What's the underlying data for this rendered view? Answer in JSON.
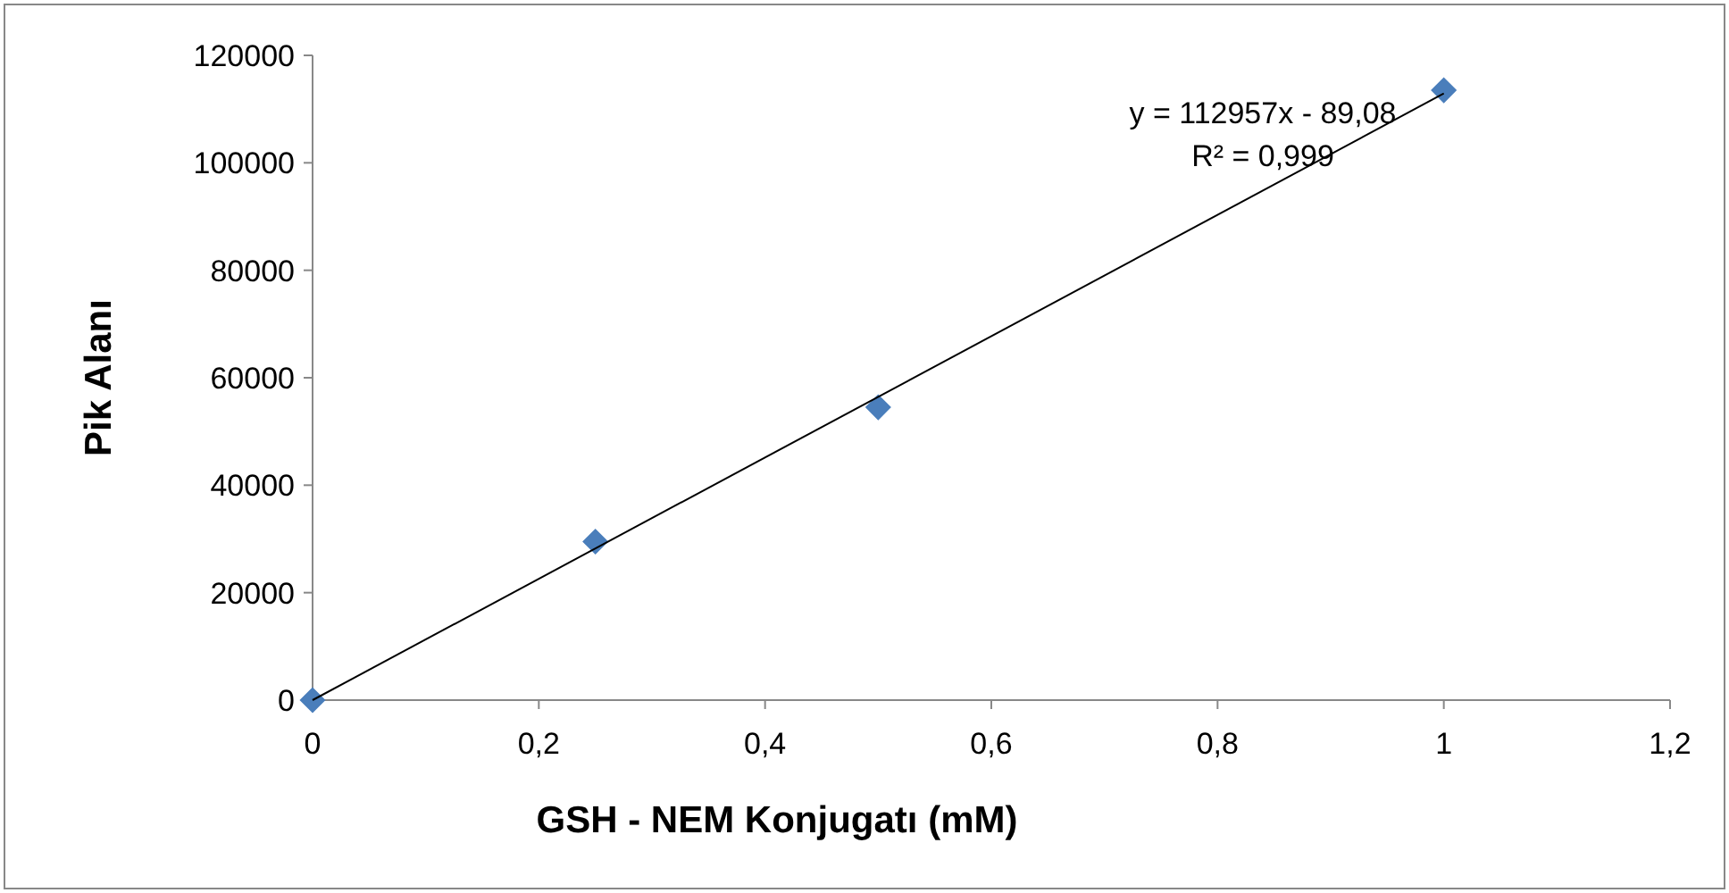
{
  "chart_data": {
    "type": "scatter",
    "xlabel": "GSH - NEM Konjugatı (mM)",
    "ylabel": "Pik Alanı",
    "annotations": [
      "y = 112957x - 89,08",
      "R² = 0,999"
    ],
    "xlim": [
      0,
      1.2
    ],
    "xticks": [
      0,
      {
        "value": 0.2,
        "label": "0,2"
      },
      {
        "value": 0.4,
        "label": "0,4"
      },
      {
        "value": 0.6,
        "label": "0,6"
      },
      {
        "value": 0.8,
        "label": "0,8"
      },
      1,
      {
        "value": 1.2,
        "label": "1,2"
      }
    ],
    "ylim": [
      0,
      120000
    ],
    "yticks": [
      0,
      20000,
      40000,
      60000,
      80000,
      100000,
      120000
    ],
    "marker": "diamond",
    "series": [
      {
        "color": "#4a7ebb",
        "x": [
          0,
          0.25,
          0.5,
          1
        ],
        "values": [
          0,
          29500,
          54500,
          113500
        ]
      },
      {
        "type": "line",
        "color": "#000000",
        "marker": "none",
        "x": [
          0,
          1
        ],
        "values": [
          0,
          112900
        ]
      }
    ]
  }
}
